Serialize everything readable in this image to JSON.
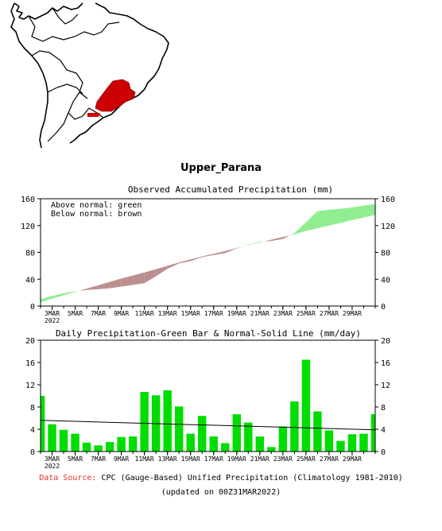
{
  "page": {
    "region": "Upper_Parana",
    "footer": {
      "source_label": "Data Source:",
      "source_text": "CPC (Gauge-Based) Unified Precipitation (Climatology 1981-2010)",
      "updated": "(updated on 00Z31MAR2022)"
    }
  },
  "colors": {
    "above": "#90ee90",
    "below": "#bc8f8f",
    "bar": "#00dd00",
    "region_fill": "#cc0000",
    "source_label": "#e8302a"
  },
  "chart_data": [
    {
      "type": "area",
      "title": "Observed Accumulated Precipitation (mm)",
      "legend": [
        "Above normal: green",
        "Below normal: brown"
      ],
      "legend_position": "top-left",
      "x_tick_labels": [
        "3MAR",
        "5MAR",
        "7MAR",
        "9MAR",
        "11MAR",
        "13MAR",
        "15MAR",
        "17MAR",
        "19MAR",
        "21MAR",
        "23MAR",
        "25MAR",
        "27MAR",
        "29MAR"
      ],
      "x_year_label": "2022",
      "ylim": [
        0,
        160
      ],
      "y_ticks": [
        0,
        40,
        80,
        120,
        160
      ],
      "x": [
        "2MAR",
        "3MAR",
        "4MAR",
        "5MAR",
        "6MAR",
        "7MAR",
        "8MAR",
        "9MAR",
        "10MAR",
        "11MAR",
        "12MAR",
        "13MAR",
        "14MAR",
        "15MAR",
        "16MAR",
        "17MAR",
        "18MAR",
        "19MAR",
        "20MAR",
        "21MAR",
        "22MAR",
        "23MAR",
        "24MAR",
        "25MAR",
        "26MAR",
        "27MAR",
        "28MAR",
        "29MAR",
        "30MAR",
        "31MAR"
      ],
      "series": [
        {
          "name": "Observed",
          "values": [
            10,
            15,
            19,
            22,
            24,
            25,
            26.5,
            29,
            31.5,
            34,
            44.5,
            55.5,
            63.5,
            67,
            73,
            76,
            79,
            86,
            91.5,
            96,
            97,
            100,
            109,
            125,
            141.5,
            143.5,
            145,
            147,
            150,
            152
          ]
        },
        {
          "name": "Normal",
          "values": [
            5.5,
            11,
            16,
            21,
            26,
            31,
            36,
            41,
            45.5,
            50,
            55,
            60,
            65,
            69.5,
            74,
            78,
            82,
            86.5,
            91,
            95,
            99,
            103,
            107,
            112,
            116,
            120,
            124,
            128,
            132,
            136
          ]
        }
      ]
    },
    {
      "type": "bar",
      "title": "Daily Precipitation-Green Bar & Normal-Solid Line (mm/day)",
      "x_tick_labels": [
        "3MAR",
        "5MAR",
        "7MAR",
        "9MAR",
        "11MAR",
        "13MAR",
        "15MAR",
        "17MAR",
        "19MAR",
        "21MAR",
        "23MAR",
        "25MAR",
        "27MAR",
        "29MAR"
      ],
      "x_year_label": "2022",
      "ylim": [
        0,
        20
      ],
      "y_ticks": [
        0,
        4,
        8,
        12,
        16,
        20
      ],
      "categories": [
        "2MAR",
        "3MAR",
        "4MAR",
        "5MAR",
        "6MAR",
        "7MAR",
        "8MAR",
        "9MAR",
        "10MAR",
        "11MAR",
        "12MAR",
        "13MAR",
        "14MAR",
        "15MAR",
        "16MAR",
        "17MAR",
        "18MAR",
        "19MAR",
        "20MAR",
        "21MAR",
        "22MAR",
        "23MAR",
        "24MAR",
        "25MAR",
        "26MAR",
        "27MAR",
        "28MAR",
        "29MAR",
        "30MAR",
        "31MAR"
      ],
      "values": [
        10,
        4.9,
        3.9,
        3.2,
        1.6,
        1.1,
        1.7,
        2.6,
        2.7,
        10.7,
        10.1,
        11,
        8.1,
        3.2,
        6.4,
        2.7,
        1.5,
        6.7,
        5.2,
        2.7,
        0.8,
        4.5,
        9,
        16.5,
        7.2,
        3.8,
        1.9,
        3.1,
        3.2,
        6.7
      ],
      "normal_line": [
        5.6,
        3.9
      ]
    }
  ]
}
